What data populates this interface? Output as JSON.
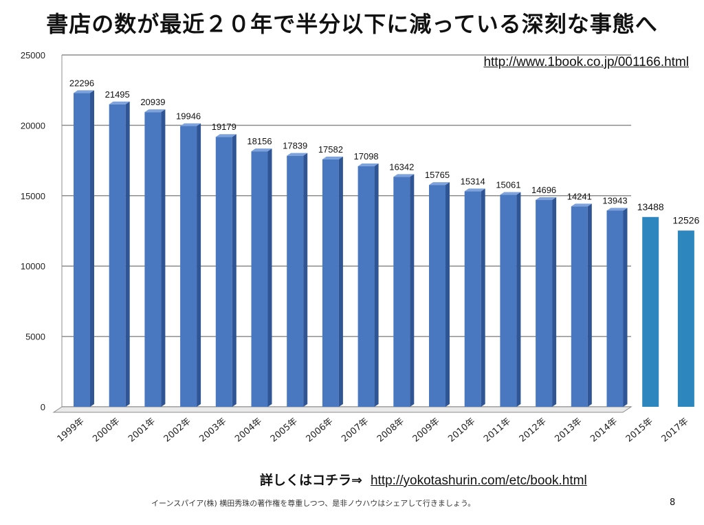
{
  "title": "書店の数が最近２０年で半分以下に減っている深刻な事態へ",
  "source_url": "http://www.1book.co.jp/001166.html",
  "more_info": {
    "lead": "詳しくはコチラ⇒",
    "url": "http://yokotashurin.com/etc/book.html"
  },
  "footer": "イーンスパイア(株) 横田秀珠の著作権を尊重しつつ、是非ノウハウはシェアして行きましょう。",
  "page_number": "8",
  "colors": {
    "bar_main": "#4a78c0",
    "bar_side": "#2f5594",
    "bar_top": "#7da2dc",
    "bar_flat": "#2e86be",
    "grid": "#8c8c8c"
  },
  "chart_data": {
    "type": "bar",
    "title": "",
    "xlabel": "",
    "ylabel": "",
    "ylim": [
      0,
      25000
    ],
    "yticks": [
      "0",
      "5000",
      "10000",
      "15000",
      "20000",
      "25000"
    ],
    "grid": true,
    "categories": [
      "1999年",
      "2000年",
      "2001年",
      "2002年",
      "2003年",
      "2004年",
      "2005年",
      "2006年",
      "2007年",
      "2008年",
      "2009年",
      "2010年",
      "2011年",
      "2012年",
      "2013年",
      "2014年",
      "2015年",
      "2017年"
    ],
    "values": [
      22296,
      21495,
      20939,
      19946,
      19179,
      18156,
      17839,
      17582,
      17098,
      16342,
      15765,
      15314,
      15061,
      14696,
      14241,
      13943,
      13488,
      12526
    ],
    "labels": [
      "22296",
      "21495",
      "20939",
      "19946",
      "19179",
      "18156",
      "17839",
      "17582",
      "17098",
      "16342",
      "15765",
      "15314",
      "15061",
      "14696",
      "14241",
      "13943",
      "13488",
      "12526"
    ],
    "highlight_from_index": 16
  }
}
